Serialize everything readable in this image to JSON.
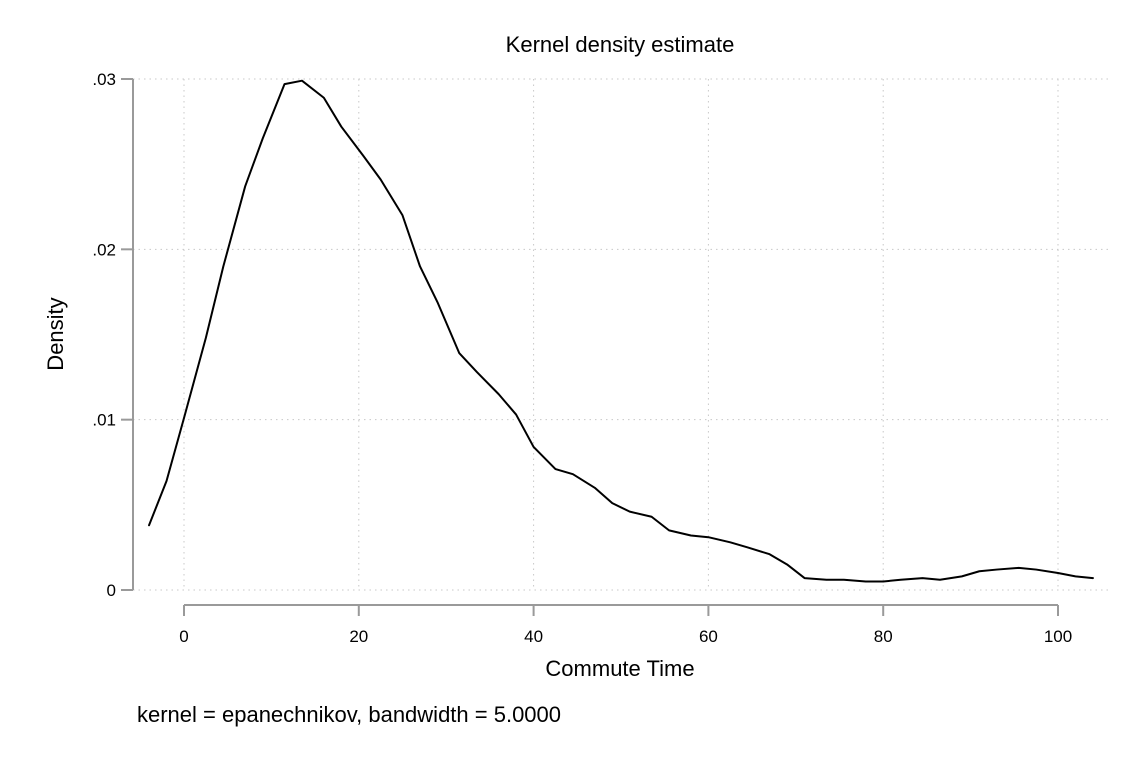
{
  "chart_data": {
    "type": "line",
    "title": "Kernel density estimate",
    "xlabel": "Commute Time",
    "ylabel": "Density",
    "note": "kernel = epanechnikov, bandwidth = 5.0000",
    "xlim": [
      -4.5,
      104
    ],
    "ylim": [
      0,
      0.03
    ],
    "x_ticks": [
      0,
      20,
      40,
      60,
      80,
      100
    ],
    "x_tick_labels": [
      "0",
      "20",
      "40",
      "60",
      "80",
      "100"
    ],
    "y_ticks": [
      0,
      0.01,
      0.02,
      0.03
    ],
    "y_tick_labels": [
      "0",
      ".01",
      ".02",
      ".03"
    ],
    "grid": true,
    "line_color": "#000000",
    "series": [
      {
        "x": [
          -4,
          -2,
          0,
          2.5,
          4.5,
          7,
          9,
          11.5,
          13.5,
          16,
          18,
          20.5,
          22.5,
          25,
          27,
          29,
          31.5,
          33.5,
          36,
          38,
          40,
          42.5,
          44.5,
          47,
          49,
          51,
          53.5,
          55.5,
          58,
          60,
          62.5,
          64.5,
          67,
          69,
          71,
          73.5,
          75.5,
          78,
          80,
          82,
          84.5,
          86.5,
          89,
          91,
          93,
          95.5,
          97.5,
          100,
          102,
          104
        ],
        "y": [
          0.0038,
          0.0064,
          0.0101,
          0.0148,
          0.019,
          0.0237,
          0.0265,
          0.0297,
          0.0299,
          0.0289,
          0.0272,
          0.0255,
          0.0241,
          0.022,
          0.019,
          0.0169,
          0.0139,
          0.0128,
          0.0115,
          0.0103,
          0.0084,
          0.0071,
          0.0068,
          0.006,
          0.0051,
          0.0046,
          0.0043,
          0.0035,
          0.0032,
          0.0031,
          0.0028,
          0.0025,
          0.0021,
          0.0015,
          0.0007,
          0.0006,
          0.0006,
          0.0005,
          0.0005,
          0.0006,
          0.0007,
          0.0006,
          0.0008,
          0.0011,
          0.0012,
          0.0013,
          0.0012,
          0.001,
          0.0008,
          0.0007
        ]
      }
    ]
  }
}
